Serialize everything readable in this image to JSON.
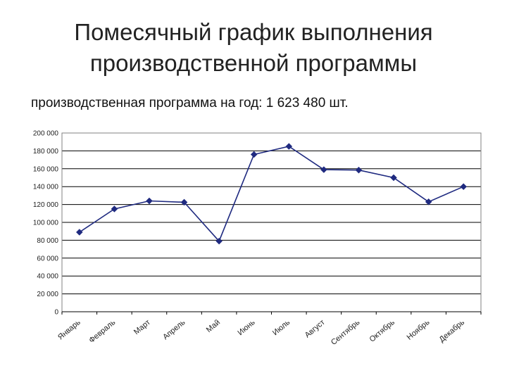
{
  "slide": {
    "title_line1": "Помесячный график выполнения",
    "title_line2": "производственной программы",
    "subtitle": "производственная программа на год: 1 623 480 шт."
  },
  "chart_data": {
    "type": "line",
    "title": "",
    "xlabel": "",
    "ylabel": "",
    "ylim": [
      0,
      200000
    ],
    "ytick_step": 20000,
    "ytick_labels": [
      "0",
      "20 000",
      "40 000",
      "60 000",
      "80 000",
      "100 000",
      "120 000",
      "140 000",
      "160 000",
      "180 000",
      "200 000"
    ],
    "grid": true,
    "legend": "none",
    "categories": [
      "Январь",
      "Февраль",
      "Март",
      "Апрель",
      "Май",
      "Июнь",
      "Июль",
      "Август",
      "Сентябрь",
      "Октябрь",
      "Ноябрь",
      "Декабрь"
    ],
    "series": [
      {
        "color": "#1f2a80",
        "values": [
          89000,
          115000,
          124000,
          122500,
          79000,
          176000,
          185000,
          159000,
          158500,
          150000,
          123000,
          140000
        ]
      }
    ]
  }
}
